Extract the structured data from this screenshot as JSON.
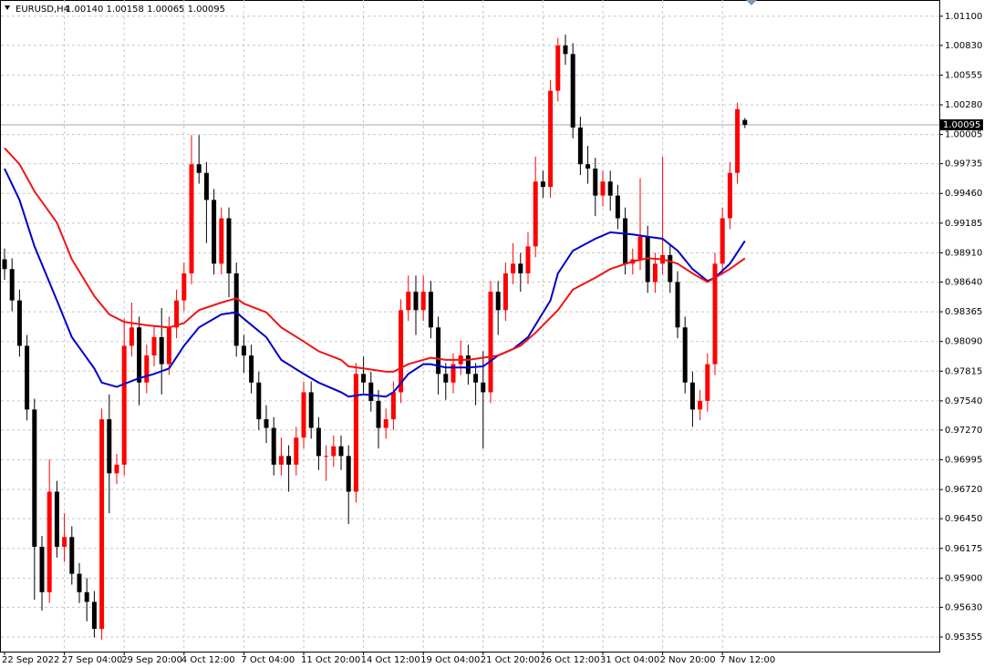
{
  "chart_data": {
    "type": "candlestick",
    "title": "EURUSD,H4",
    "ohlc_text": "1.00140 1.00158 1.00065 1.00095",
    "categories": [
      "22 Sep 2022",
      null,
      null,
      null,
      null,
      null,
      null,
      null,
      "27 Sep 04:00",
      null,
      null,
      null,
      null,
      null,
      null,
      null,
      "29 Sep 20:00",
      null,
      null,
      null,
      null,
      null,
      null,
      null,
      "4 Oct 12:00",
      null,
      null,
      null,
      null,
      null,
      null,
      null,
      "7 Oct 04:00",
      null,
      null,
      null,
      null,
      null,
      null,
      null,
      "11 Oct 20:00",
      null,
      null,
      null,
      null,
      null,
      null,
      null,
      "14 Oct 12:00",
      null,
      null,
      null,
      null,
      null,
      null,
      null,
      "19 Oct 04:00",
      null,
      null,
      null,
      null,
      null,
      null,
      null,
      "21 Oct 20:00",
      null,
      null,
      null,
      null,
      null,
      null,
      null,
      "26 Oct 12:00",
      null,
      null,
      null,
      null,
      null,
      null,
      null,
      "31 Oct 04:00",
      null,
      null,
      null,
      null,
      null,
      null,
      null,
      "2 Nov 20:00",
      null,
      null,
      null,
      null,
      null,
      null,
      null,
      "7 Nov 12:00",
      null,
      null,
      null
    ],
    "open": [
      0.9885,
      0.9876,
      0.9847,
      0.9805,
      0.9746,
      0.9619,
      0.9577,
      0.967,
      0.9619,
      0.9628,
      0.9594,
      0.9577,
      0.9568,
      0.9543,
      0.9737,
      0.9687,
      0.9695,
      0.9805,
      0.9822,
      0.9771,
      0.9796,
      0.9813,
      0.9788,
      0.9822,
      0.9847,
      0.9872,
      0.9973,
      0.9965,
      0.994,
      0.9881,
      0.9923,
      0.9872,
      0.9805,
      0.9796,
      0.9771,
      0.9737,
      0.9729,
      0.9695,
      0.9703,
      0.9695,
      0.972,
      0.9762,
      0.9729,
      0.9703,
      0.9703,
      0.9712,
      0.9703,
      0.967,
      0.9779,
      0.9771,
      0.9754,
      0.9729,
      0.9737,
      0.9762,
      0.9838,
      0.9855,
      0.9838,
      0.9855,
      0.9822,
      0.9779,
      0.9771,
      0.9788,
      0.9796,
      0.9779,
      0.9771,
      0.9762,
      0.9855,
      0.9838,
      0.9872,
      0.9881,
      0.9872,
      0.9897,
      0.9957,
      0.9952,
      1.0041,
      1.0083,
      1.0075,
      1.0007,
      0.9973,
      0.9969,
      0.9944,
      0.9957,
      0.9944,
      0.9923,
      0.9881,
      0.9885,
      0.9906,
      0.9864,
      0.9881,
      0.9889,
      0.9864,
      0.9822,
      0.9771,
      0.9746,
      0.9754,
      0.9788,
      0.9881,
      0.9923,
      0.9965,
      1.0014
    ],
    "high": [
      0.9895,
      0.9886,
      0.9857,
      0.9815,
      0.9756,
      0.9629,
      0.97,
      0.968,
      0.965,
      0.9638,
      0.9604,
      0.959,
      0.9578,
      0.9747,
      0.976,
      0.9705,
      0.983,
      0.9845,
      0.9832,
      0.9806,
      0.9823,
      0.984,
      0.9832,
      0.9857,
      0.9882,
      1.0,
      1.0,
      0.9975,
      0.995,
      0.9933,
      0.9933,
      0.9882,
      0.9815,
      0.9806,
      0.9781,
      0.975,
      0.9739,
      0.972,
      0.9713,
      0.973,
      0.9772,
      0.9772,
      0.9739,
      0.9713,
      0.9722,
      0.9722,
      0.9713,
      0.9789,
      0.9795,
      0.9781,
      0.9764,
      0.9747,
      0.9772,
      0.9848,
      0.987,
      0.987,
      0.987,
      0.9865,
      0.9832,
      0.9789,
      0.9798,
      0.981,
      0.9806,
      0.9789,
      0.98,
      0.9865,
      0.9865,
      0.9882,
      0.99,
      0.9891,
      0.991,
      0.998,
      0.9967,
      1.0051,
      1.009,
      1.0093,
      1.0085,
      1.0017,
      0.999,
      0.9979,
      0.9967,
      0.9967,
      0.9954,
      0.9933,
      0.9895,
      0.996,
      0.9916,
      0.9891,
      0.998,
      0.9899,
      0.9874,
      0.9832,
      0.9781,
      0.9764,
      0.9798,
      0.9891,
      0.9933,
      0.9975,
      1.003,
      1.00158
    ],
    "low": [
      0.9866,
      0.9837,
      0.9795,
      0.9736,
      0.957,
      0.956,
      0.9567,
      0.9609,
      0.9605,
      0.9584,
      0.9567,
      0.955,
      0.9535,
      0.9533,
      0.965,
      0.9677,
      0.9685,
      0.9795,
      0.975,
      0.9761,
      0.9786,
      0.976,
      0.9778,
      0.9812,
      0.9837,
      0.9862,
      0.9955,
      0.99,
      0.9871,
      0.9871,
      0.985,
      0.9795,
      0.978,
      0.9761,
      0.9727,
      0.9715,
      0.9685,
      0.9685,
      0.967,
      0.9685,
      0.971,
      0.9719,
      0.969,
      0.968,
      0.9693,
      0.969,
      0.964,
      0.966,
      0.9761,
      0.9744,
      0.971,
      0.9719,
      0.9727,
      0.9752,
      0.9828,
      0.9815,
      0.9828,
      0.9812,
      0.976,
      0.9755,
      0.9761,
      0.9778,
      0.9769,
      0.975,
      0.971,
      0.9752,
      0.9815,
      0.9828,
      0.9862,
      0.9855,
      0.9862,
      0.9887,
      0.9942,
      0.9942,
      1.0031,
      1.0065,
      0.9997,
      0.9963,
      0.9955,
      0.9925,
      0.9934,
      0.993,
      0.9913,
      0.9871,
      0.9871,
      0.9875,
      0.9854,
      0.9854,
      0.9871,
      0.9854,
      0.9812,
      0.9761,
      0.973,
      0.9736,
      0.9744,
      0.9778,
      0.9871,
      0.9913,
      0.9955,
      1.00065
    ],
    "close": [
      0.9876,
      0.9847,
      0.9805,
      0.9746,
      0.9619,
      0.9577,
      0.967,
      0.9619,
      0.9628,
      0.9594,
      0.9577,
      0.9568,
      0.9543,
      0.9737,
      0.9687,
      0.9695,
      0.9805,
      0.9822,
      0.9771,
      0.9796,
      0.9813,
      0.9788,
      0.9822,
      0.9847,
      0.9872,
      0.9973,
      0.9965,
      0.994,
      0.9881,
      0.9923,
      0.9872,
      0.9805,
      0.9796,
      0.9771,
      0.9737,
      0.9729,
      0.9695,
      0.9703,
      0.9695,
      0.972,
      0.9762,
      0.9729,
      0.9703,
      0.9703,
      0.9712,
      0.9703,
      0.967,
      0.9779,
      0.9771,
      0.9754,
      0.9729,
      0.9737,
      0.9762,
      0.9838,
      0.9855,
      0.9838,
      0.9855,
      0.9822,
      0.9779,
      0.9771,
      0.9788,
      0.9796,
      0.9779,
      0.9771,
      0.9762,
      0.9855,
      0.9838,
      0.9872,
      0.9881,
      0.9872,
      0.9897,
      0.9957,
      0.9952,
      1.0041,
      1.0083,
      1.0075,
      1.0007,
      0.9973,
      0.9969,
      0.9944,
      0.9957,
      0.9944,
      0.9923,
      0.9881,
      0.9885,
      0.9906,
      0.9864,
      0.9881,
      0.9889,
      0.9864,
      0.9822,
      0.9771,
      0.9746,
      0.9754,
      0.9788,
      0.9881,
      0.9923,
      0.9965,
      1.0024,
      1.00095
    ],
    "up_color": "#ff0000",
    "down_color": "#000000",
    "series": [
      {
        "color": "#0000c8",
        "x": [
          0,
          2,
          4,
          7,
          9,
          12,
          13,
          15,
          18,
          20,
          22,
          24,
          26,
          28,
          29,
          31,
          32,
          35,
          37,
          40,
          42,
          45,
          46,
          48,
          51,
          52,
          54,
          56,
          57,
          59,
          62,
          64,
          66,
          68,
          70,
          73,
          74,
          76,
          79,
          81,
          84,
          86,
          88,
          90,
          92,
          94,
          95,
          97,
          99
        ],
        "values": [
          0.9969,
          0.994,
          0.9897,
          0.9847,
          0.9813,
          0.9784,
          0.9771,
          0.9767,
          0.9775,
          0.9779,
          0.9784,
          0.9805,
          0.9822,
          0.983,
          0.9834,
          0.9836,
          0.983,
          0.9813,
          0.9792,
          0.9779,
          0.9771,
          0.9762,
          0.9758,
          0.976,
          0.9758,
          0.9762,
          0.9779,
          0.9788,
          0.9788,
          0.9785,
          0.9785,
          0.9786,
          0.9796,
          0.9802,
          0.9813,
          0.9847,
          0.9872,
          0.9893,
          0.9904,
          0.991,
          0.9908,
          0.9906,
          0.9904,
          0.9893,
          0.9876,
          0.9865,
          0.9868,
          0.9881,
          0.9902
        ]
      },
      {
        "color": "#f01414",
        "x": [
          0,
          2,
          4,
          7,
          9,
          12,
          14,
          16,
          19,
          22,
          24,
          26,
          29,
          31,
          32,
          35,
          37,
          40,
          42,
          45,
          46,
          48,
          51,
          52,
          54,
          57,
          59,
          62,
          64,
          66,
          69,
          71,
          74,
          76,
          79,
          81,
          84,
          86,
          88,
          90,
          92,
          94,
          95,
          97,
          99
        ],
        "values": [
          0.9988,
          0.9973,
          0.9948,
          0.9919,
          0.9885,
          0.9851,
          0.9834,
          0.9827,
          0.9824,
          0.9822,
          0.9826,
          0.9838,
          0.9845,
          0.9849,
          0.9844,
          0.9836,
          0.9822,
          0.9809,
          0.98,
          0.9792,
          0.9786,
          0.9784,
          0.9781,
          0.9781,
          0.9788,
          0.9794,
          0.9792,
          0.9792,
          0.9794,
          0.9796,
          0.9805,
          0.9817,
          0.9838,
          0.9857,
          0.9868,
          0.9876,
          0.9883,
          0.9886,
          0.9885,
          0.9881,
          0.9872,
          0.9864,
          0.9868,
          0.9876,
          0.9886
        ]
      }
    ],
    "ylim": [
      0.9522,
      1.0125
    ],
    "yticks": [
      {
        "value": 1.011,
        "label": "1.01100"
      },
      {
        "value": 1.0083,
        "label": "1.00830"
      },
      {
        "value": 1.00555,
        "label": "1.00555"
      },
      {
        "value": 1.0028,
        "label": "1.00280"
      },
      {
        "value": 1.00005,
        "label": "1.00005"
      },
      {
        "value": 0.99735,
        "label": "0.99735"
      },
      {
        "value": 0.9946,
        "label": "0.99460"
      },
      {
        "value": 0.99185,
        "label": "0.99185"
      },
      {
        "value": 0.9891,
        "label": "0.98910"
      },
      {
        "value": 0.9864,
        "label": "0.98640"
      },
      {
        "value": 0.98365,
        "label": "0.98365"
      },
      {
        "value": 0.9809,
        "label": "0.98090"
      },
      {
        "value": 0.97815,
        "label": "0.97815"
      },
      {
        "value": 0.9754,
        "label": "0.97540"
      },
      {
        "value": 0.9727,
        "label": "0.97270"
      },
      {
        "value": 0.96995,
        "label": "0.96995"
      },
      {
        "value": 0.9672,
        "label": "0.96720"
      },
      {
        "value": 0.9645,
        "label": "0.96450"
      },
      {
        "value": 0.96175,
        "label": "0.96175"
      },
      {
        "value": 0.959,
        "label": "0.95900"
      },
      {
        "value": 0.9563,
        "label": "0.95630"
      },
      {
        "value": 0.95355,
        "label": "0.95355"
      }
    ],
    "current_price": {
      "value": 1.00095,
      "label": "1.00095"
    },
    "grid": true
  }
}
